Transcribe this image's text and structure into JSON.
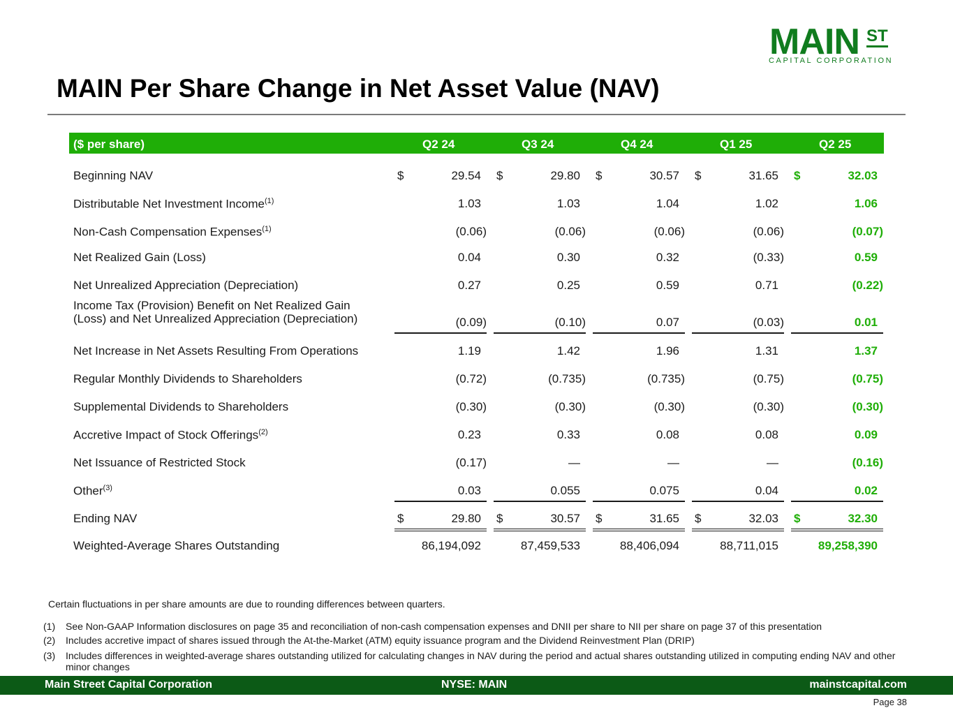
{
  "logo": {
    "main": "MAIN",
    "st": "ST",
    "sub": "CAPITAL CORPORATION"
  },
  "title": "MAIN Per Share Change in Net Asset Value (NAV)",
  "colors": {
    "green": "#1fae07",
    "footer_green": "#0c5a16",
    "logo_green": "#107c1e"
  },
  "table": {
    "header": [
      "($ per share)",
      "Q2 24",
      "Q3 24",
      "Q4 24",
      "Q1 25",
      "Q2 25"
    ],
    "rows": [
      {
        "label": "Beginning NAV",
        "sup": "",
        "values": [
          "29.54",
          "29.80",
          "30.57",
          "31.65",
          "32.03"
        ],
        "dollar": true
      },
      {
        "label": "Distributable Net Investment Income",
        "sup": "(1)",
        "values": [
          "1.03",
          "1.03",
          "1.04",
          "1.02",
          "1.06"
        ]
      },
      {
        "label": "Non-Cash Compensation Expenses",
        "sup": "(1)",
        "values": [
          "(0.06)",
          "(0.06)",
          "(0.06)",
          "(0.06)",
          "(0.07)"
        ]
      },
      {
        "label": "Net Realized Gain (Loss)",
        "sup": "",
        "values": [
          "0.04",
          "0.30",
          "0.32",
          "(0.33)",
          "0.59"
        ]
      },
      {
        "label": "Net Unrealized Appreciation (Depreciation)",
        "sup": "",
        "values": [
          "0.27",
          "0.25",
          "0.59",
          "0.71",
          "(0.22)"
        ]
      },
      {
        "label": "Income Tax (Provision) Benefit on Net Realized Gain",
        "label2": "(Loss) and Net Unrealized Appreciation (Depreciation)",
        "sup": "",
        "values": [
          "(0.09)",
          "(0.10)",
          "0.07",
          "(0.03)",
          "0.01"
        ]
      },
      {
        "label": "Net Increase in Net Assets Resulting From Operations",
        "sup": "",
        "values": [
          "1.19",
          "1.42",
          "1.96",
          "1.31",
          "1.37"
        ]
      },
      {
        "label": "Regular Monthly Dividends to Shareholders",
        "sup": "",
        "values": [
          "(0.72)",
          "(0.735)",
          "(0.735)",
          "(0.75)",
          "(0.75)"
        ]
      },
      {
        "label": "Supplemental Dividends to Shareholders",
        "sup": "",
        "values": [
          "(0.30)",
          "(0.30)",
          "(0.30)",
          "(0.30)",
          "(0.30)"
        ]
      },
      {
        "label": "Accretive Impact of Stock Offerings",
        "sup": "(2)",
        "values": [
          "0.23",
          "0.33",
          "0.08",
          "0.08",
          "0.09"
        ]
      },
      {
        "label": "Net Issuance of Restricted Stock",
        "sup": "",
        "values": [
          "(0.17)",
          "—",
          "—",
          "—",
          "(0.16)"
        ]
      },
      {
        "label": "Other",
        "sup": "(3)",
        "values": [
          "0.03",
          "0.055",
          "0.075",
          "0.04",
          "0.02"
        ]
      },
      {
        "label": "Ending NAV",
        "sup": "",
        "values": [
          "29.80",
          "30.57",
          "31.65",
          "32.03",
          "32.30"
        ],
        "dollar": true
      },
      {
        "label": "Weighted-Average Shares Outstanding",
        "sup": "",
        "values": [
          "86,194,092",
          "87,459,533",
          "88,406,094",
          "88,711,015",
          "89,258,390"
        ]
      }
    ],
    "dollar_sign": "$"
  },
  "note": "Certain fluctuations in per share amounts are due to rounding differences between quarters.",
  "footnotes": [
    {
      "num": "(1)",
      "text": "See Non-GAAP Information disclosures on page 35 and reconciliation of non-cash compensation expenses and DNII per share to NII per share on page 37 of this presentation"
    },
    {
      "num": "(2)",
      "text": "Includes accretive impact of shares issued through the At-the-Market (ATM) equity issuance program and the Dividend Reinvestment Plan (DRIP)"
    },
    {
      "num": "(3)",
      "text": "Includes differences in weighted-average shares outstanding utilized for calculating changes in NAV during the period and actual shares outstanding utilized in computing ending NAV and other minor changes"
    }
  ],
  "footer": {
    "left": "Main Street Capital Corporation",
    "center": "NYSE: MAIN",
    "right": "mainstcapital.com"
  },
  "page": "Page  38"
}
